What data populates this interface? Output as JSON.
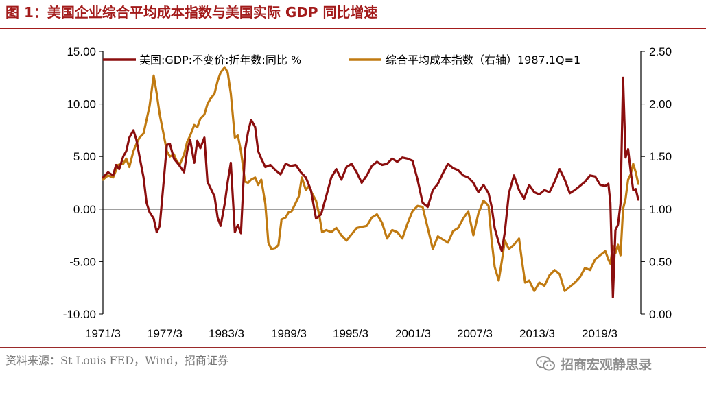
{
  "header": {
    "title": "图 1：美国企业综合平均成本指数与美国实际 GDP 同比增速"
  },
  "footer": {
    "source": "资料来源：St Louis FED，Wind，招商证券",
    "watermark": "招商宏观静思录",
    "watermark_icon": "wechat-icon"
  },
  "colors": {
    "gdp": "#8b0e0e",
    "cost": "#c07a11",
    "title": "#a31b1b"
  },
  "chart_data": {
    "type": "line",
    "title": "图 1：美国企业综合平均成本指数与美国实际 GDP 同比增速",
    "x_categories": [
      "1971/3",
      "1977/3",
      "1983/3",
      "1989/3",
      "1995/3",
      "2001/3",
      "2007/3",
      "2013/3",
      "2019/3"
    ],
    "x_range": [
      1970,
      2023
    ],
    "ylim_left": [
      -10,
      15
    ],
    "ylim_right": [
      0,
      2.5
    ],
    "y_left_ticks": [
      "15.00",
      "10.00",
      "5.00",
      "0.00",
      "-5.00",
      "-10.00"
    ],
    "y_right_ticks": [
      "2.50",
      "2.00",
      "1.50",
      "1.00",
      "0.50",
      "0.00"
    ],
    "legend_position": "top",
    "series": [
      {
        "name": "美国:GDP:不变价:折年数:同比 %",
        "axis": "left",
        "points": [
          [
            1970.0,
            3.0
          ],
          [
            1970.5,
            3.5
          ],
          [
            1971.0,
            3.2
          ],
          [
            1971.3,
            4.2
          ],
          [
            1971.6,
            3.8
          ],
          [
            1972.0,
            5.0
          ],
          [
            1972.3,
            5.5
          ],
          [
            1972.6,
            6.8
          ],
          [
            1973.0,
            7.5
          ],
          [
            1973.3,
            6.6
          ],
          [
            1973.6,
            5.0
          ],
          [
            1974.0,
            3.0
          ],
          [
            1974.3,
            0.6
          ],
          [
            1974.6,
            -0.3
          ],
          [
            1975.0,
            -0.9
          ],
          [
            1975.3,
            -2.2
          ],
          [
            1975.6,
            -1.6
          ],
          [
            1976.0,
            2.8
          ],
          [
            1976.3,
            6.1
          ],
          [
            1976.6,
            6.2
          ],
          [
            1977.0,
            4.8
          ],
          [
            1977.5,
            4.2
          ],
          [
            1978.0,
            3.5
          ],
          [
            1978.3,
            5.5
          ],
          [
            1978.6,
            6.6
          ],
          [
            1979.0,
            4.4
          ],
          [
            1979.3,
            6.5
          ],
          [
            1979.6,
            5.8
          ],
          [
            1980.0,
            6.8
          ],
          [
            1980.3,
            2.6
          ],
          [
            1980.6,
            2.0
          ],
          [
            1981.0,
            1.2
          ],
          [
            1981.3,
            -0.8
          ],
          [
            1981.6,
            -1.6
          ],
          [
            1982.0,
            0.5
          ],
          [
            1982.3,
            2.6
          ],
          [
            1982.6,
            4.4
          ],
          [
            1983.0,
            -2.2
          ],
          [
            1983.3,
            -1.5
          ],
          [
            1983.6,
            -2.3
          ],
          [
            1984.0,
            5.6
          ],
          [
            1984.3,
            7.3
          ],
          [
            1984.6,
            8.5
          ],
          [
            1985.0,
            7.8
          ],
          [
            1985.3,
            5.5
          ],
          [
            1985.6,
            4.8
          ],
          [
            1986.0,
            4.0
          ],
          [
            1986.5,
            4.2
          ],
          [
            1987.0,
            3.7
          ],
          [
            1987.5,
            3.3
          ],
          [
            1988.0,
            4.3
          ],
          [
            1988.5,
            4.1
          ],
          [
            1989.0,
            4.2
          ],
          [
            1989.5,
            3.5
          ],
          [
            1990.0,
            3.0
          ],
          [
            1990.5,
            1.8
          ],
          [
            1991.0,
            -0.9
          ],
          [
            1991.5,
            -0.5
          ],
          [
            1992.0,
            1.2
          ],
          [
            1992.5,
            3.0
          ],
          [
            1993.0,
            3.8
          ],
          [
            1993.5,
            2.8
          ],
          [
            1994.0,
            4.0
          ],
          [
            1994.5,
            4.3
          ],
          [
            1995.0,
            3.5
          ],
          [
            1995.5,
            2.5
          ],
          [
            1996.0,
            3.2
          ],
          [
            1996.5,
            4.1
          ],
          [
            1997.0,
            4.5
          ],
          [
            1997.5,
            4.2
          ],
          [
            1998.0,
            4.3
          ],
          [
            1998.5,
            4.8
          ],
          [
            1999.0,
            4.5
          ],
          [
            1999.5,
            4.9
          ],
          [
            2000.0,
            4.8
          ],
          [
            2000.5,
            4.6
          ],
          [
            2001.0,
            2.8
          ],
          [
            2001.5,
            0.6
          ],
          [
            2002.0,
            0.2
          ],
          [
            2002.5,
            1.8
          ],
          [
            2003.0,
            2.4
          ],
          [
            2003.5,
            3.4
          ],
          [
            2004.0,
            4.3
          ],
          [
            2004.5,
            3.9
          ],
          [
            2005.0,
            3.7
          ],
          [
            2005.5,
            3.2
          ],
          [
            2006.0,
            3.0
          ],
          [
            2006.5,
            2.5
          ],
          [
            2007.0,
            1.6
          ],
          [
            2007.5,
            2.3
          ],
          [
            2008.0,
            1.5
          ],
          [
            2008.3,
            0.2
          ],
          [
            2008.6,
            -1.8
          ],
          [
            2009.0,
            -3.2
          ],
          [
            2009.3,
            -4.0
          ],
          [
            2009.6,
            -2.2
          ],
          [
            2010.0,
            1.5
          ],
          [
            2010.5,
            3.2
          ],
          [
            2011.0,
            1.8
          ],
          [
            2011.5,
            1.0
          ],
          [
            2012.0,
            2.3
          ],
          [
            2012.5,
            1.6
          ],
          [
            2013.0,
            1.4
          ],
          [
            2013.5,
            1.8
          ],
          [
            2014.0,
            1.6
          ],
          [
            2014.5,
            2.6
          ],
          [
            2015.0,
            3.8
          ],
          [
            2015.5,
            2.8
          ],
          [
            2016.0,
            1.5
          ],
          [
            2016.5,
            1.8
          ],
          [
            2017.0,
            2.2
          ],
          [
            2017.5,
            2.6
          ],
          [
            2018.0,
            3.2
          ],
          [
            2018.5,
            3.1
          ],
          [
            2019.0,
            2.3
          ],
          [
            2019.5,
            2.2
          ],
          [
            2019.8,
            2.4
          ],
          [
            2020.0,
            0.6
          ],
          [
            2020.25,
            -8.4
          ],
          [
            2020.5,
            -2.0
          ],
          [
            2020.75,
            -1.5
          ],
          [
            2021.0,
            0.5
          ],
          [
            2021.25,
            12.5
          ],
          [
            2021.5,
            4.9
          ],
          [
            2021.75,
            5.7
          ],
          [
            2022.0,
            3.6
          ],
          [
            2022.25,
            1.8
          ],
          [
            2022.5,
            1.9
          ],
          [
            2022.75,
            0.9
          ]
        ]
      },
      {
        "name": "综合平均成本指数（右轴）1987.1Q=1",
        "axis": "right",
        "points": [
          [
            1970.0,
            1.28
          ],
          [
            1970.5,
            1.32
          ],
          [
            1971.0,
            1.3
          ],
          [
            1971.5,
            1.42
          ],
          [
            1972.0,
            1.43
          ],
          [
            1972.3,
            1.48
          ],
          [
            1972.6,
            1.4
          ],
          [
            1973.0,
            1.55
          ],
          [
            1973.3,
            1.62
          ],
          [
            1973.6,
            1.68
          ],
          [
            1974.0,
            1.72
          ],
          [
            1974.3,
            1.85
          ],
          [
            1974.6,
            1.98
          ],
          [
            1975.0,
            2.27
          ],
          [
            1975.3,
            2.1
          ],
          [
            1975.6,
            1.9
          ],
          [
            1976.0,
            1.7
          ],
          [
            1976.3,
            1.55
          ],
          [
            1976.6,
            1.5
          ],
          [
            1977.0,
            1.52
          ],
          [
            1977.3,
            1.45
          ],
          [
            1977.6,
            1.43
          ],
          [
            1978.0,
            1.52
          ],
          [
            1978.3,
            1.64
          ],
          [
            1978.6,
            1.7
          ],
          [
            1979.0,
            1.8
          ],
          [
            1979.3,
            1.78
          ],
          [
            1979.6,
            1.86
          ],
          [
            1980.0,
            1.9
          ],
          [
            1980.3,
            2.0
          ],
          [
            1980.6,
            2.05
          ],
          [
            1981.0,
            2.1
          ],
          [
            1981.3,
            2.22
          ],
          [
            1981.6,
            2.3
          ],
          [
            1982.0,
            2.35
          ],
          [
            1982.3,
            2.3
          ],
          [
            1982.6,
            2.1
          ],
          [
            1983.0,
            1.68
          ],
          [
            1983.3,
            1.7
          ],
          [
            1983.6,
            1.55
          ],
          [
            1984.0,
            1.26
          ],
          [
            1984.3,
            1.25
          ],
          [
            1984.6,
            1.28
          ],
          [
            1985.0,
            1.3
          ],
          [
            1985.3,
            1.23
          ],
          [
            1985.6,
            1.28
          ],
          [
            1986.0,
            1.05
          ],
          [
            1986.3,
            0.68
          ],
          [
            1986.6,
            0.62
          ],
          [
            1987.0,
            0.63
          ],
          [
            1987.3,
            0.66
          ],
          [
            1987.6,
            0.9
          ],
          [
            1988.0,
            0.92
          ],
          [
            1988.3,
            0.97
          ],
          [
            1988.6,
            0.98
          ],
          [
            1989.0,
            1.06
          ],
          [
            1989.3,
            1.12
          ],
          [
            1989.6,
            1.3
          ],
          [
            1990.0,
            1.18
          ],
          [
            1990.3,
            1.22
          ],
          [
            1990.6,
            1.15
          ],
          [
            1991.0,
            1.08
          ],
          [
            1991.3,
            0.95
          ],
          [
            1991.6,
            0.78
          ],
          [
            1992.0,
            0.8
          ],
          [
            1992.5,
            0.78
          ],
          [
            1993.0,
            0.82
          ],
          [
            1993.5,
            0.75
          ],
          [
            1994.0,
            0.7
          ],
          [
            1994.5,
            0.76
          ],
          [
            1995.0,
            0.82
          ],
          [
            1995.5,
            0.83
          ],
          [
            1996.0,
            0.84
          ],
          [
            1996.5,
            0.92
          ],
          [
            1997.0,
            0.95
          ],
          [
            1997.5,
            0.87
          ],
          [
            1998.0,
            0.72
          ],
          [
            1998.5,
            0.8
          ],
          [
            1999.0,
            0.78
          ],
          [
            1999.5,
            0.72
          ],
          [
            2000.0,
            0.86
          ],
          [
            2000.5,
            0.98
          ],
          [
            2001.0,
            1.03
          ],
          [
            2001.5,
            1.02
          ],
          [
            2002.0,
            0.82
          ],
          [
            2002.5,
            0.62
          ],
          [
            2003.0,
            0.74
          ],
          [
            2003.5,
            0.71
          ],
          [
            2004.0,
            0.68
          ],
          [
            2004.5,
            0.79
          ],
          [
            2005.0,
            0.82
          ],
          [
            2005.5,
            0.91
          ],
          [
            2006.0,
            0.98
          ],
          [
            2006.5,
            0.75
          ],
          [
            2007.0,
            0.96
          ],
          [
            2007.5,
            1.08
          ],
          [
            2008.0,
            1.03
          ],
          [
            2008.3,
            0.7
          ],
          [
            2008.6,
            0.45
          ],
          [
            2009.0,
            0.32
          ],
          [
            2009.3,
            0.5
          ],
          [
            2009.6,
            0.7
          ],
          [
            2010.0,
            0.62
          ],
          [
            2010.5,
            0.66
          ],
          [
            2011.0,
            0.72
          ],
          [
            2011.3,
            0.5
          ],
          [
            2011.6,
            0.3
          ],
          [
            2012.0,
            0.32
          ],
          [
            2012.5,
            0.22
          ],
          [
            2013.0,
            0.3
          ],
          [
            2013.5,
            0.27
          ],
          [
            2014.0,
            0.37
          ],
          [
            2014.5,
            0.42
          ],
          [
            2015.0,
            0.38
          ],
          [
            2015.5,
            0.22
          ],
          [
            2016.0,
            0.26
          ],
          [
            2016.5,
            0.3
          ],
          [
            2017.0,
            0.35
          ],
          [
            2017.5,
            0.44
          ],
          [
            2018.0,
            0.42
          ],
          [
            2018.5,
            0.52
          ],
          [
            2019.0,
            0.56
          ],
          [
            2019.5,
            0.6
          ],
          [
            2019.8,
            0.52
          ],
          [
            2020.0,
            0.48
          ],
          [
            2020.25,
            0.65
          ],
          [
            2020.5,
            0.58
          ],
          [
            2020.75,
            0.66
          ],
          [
            2021.0,
            0.56
          ],
          [
            2021.25,
            1.0
          ],
          [
            2021.5,
            1.1
          ],
          [
            2021.75,
            1.28
          ],
          [
            2022.0,
            1.33
          ],
          [
            2022.25,
            1.43
          ],
          [
            2022.5,
            1.35
          ],
          [
            2022.75,
            1.24
          ]
        ]
      }
    ]
  }
}
